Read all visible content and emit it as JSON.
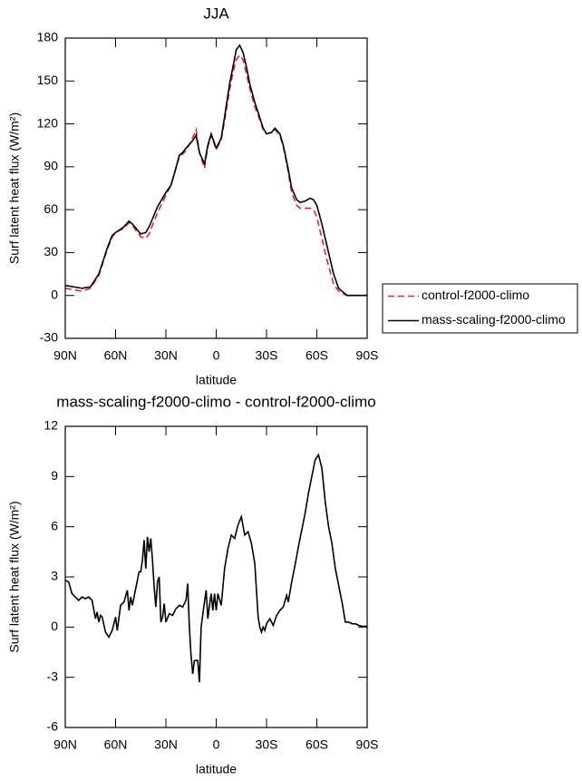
{
  "chart_data": [
    {
      "type": "line",
      "title": "JJA",
      "xlabel": "latitude",
      "ylabel": "Surf latent heat flux (W/m²)",
      "x": [
        90,
        85,
        80,
        75,
        70,
        65,
        62,
        60,
        55,
        52,
        50,
        45,
        42,
        40,
        35,
        30,
        27,
        25,
        22,
        20,
        18,
        15,
        13,
        12,
        10,
        7,
        5,
        3,
        0,
        -3,
        -5,
        -8,
        -10,
        -12,
        -14,
        -16,
        -18,
        -20,
        -23,
        -25,
        -28,
        -30,
        -33,
        -35,
        -38,
        -40,
        -43,
        -45,
        -48,
        -50,
        -53,
        -56,
        -58,
        -60,
        -63,
        -66,
        -70,
        -73,
        -76,
        -78,
        -80,
        -85,
        -90
      ],
      "series": [
        {
          "name": "control-f2000-climo",
          "color": "#e8202a",
          "dash": true,
          "values": [
            5,
            4,
            3,
            5,
            14,
            32,
            41,
            44,
            47,
            51,
            49,
            41,
            40,
            43,
            58,
            70,
            77,
            85,
            97,
            99,
            101,
            108,
            113,
            116,
            100,
            89,
            104,
            112,
            102,
            109,
            122,
            144,
            156,
            165,
            168,
            165,
            155,
            145,
            132,
            126,
            116,
            113,
            114,
            116,
            112,
            104,
            86,
            72,
            63,
            61,
            61,
            61,
            60,
            55,
            40,
            25,
            8,
            3,
            1,
            0,
            0,
            0,
            0
          ]
        },
        {
          "name": "mass-scaling-f2000-climo",
          "color": "#000000",
          "dash": false,
          "values": [
            7,
            6,
            5,
            6,
            15,
            33,
            42,
            44,
            48,
            52,
            50,
            43,
            44,
            48,
            62,
            72,
            77,
            85,
            98,
            100,
            103,
            107,
            110,
            112,
            100,
            92,
            105,
            113,
            103,
            110,
            125,
            148,
            160,
            172,
            175,
            170,
            160,
            148,
            135,
            128,
            117,
            113,
            114,
            117,
            113,
            105,
            88,
            75,
            67,
            65,
            66,
            68,
            67,
            63,
            50,
            35,
            15,
            5,
            2,
            0,
            0,
            0,
            0
          ]
        }
      ],
      "xlim": [
        90,
        -90
      ],
      "xticks": [
        {
          "value": 90,
          "label": "90N"
        },
        {
          "value": 60,
          "label": "60N"
        },
        {
          "value": 30,
          "label": "30N"
        },
        0,
        {
          "value": -30,
          "label": "30S"
        },
        {
          "value": -60,
          "label": "60S"
        },
        {
          "value": -90,
          "label": "90S"
        }
      ],
      "ylim": [
        -30,
        180
      ],
      "yticks": [
        -30,
        0,
        30,
        60,
        90,
        120,
        150,
        180
      ],
      "legend": "right"
    },
    {
      "type": "line",
      "title": "mass-scaling-f2000-climo - control-f2000-climo",
      "xlabel": "latitude",
      "ylabel": "Surf latent heat flux (W/m²)",
      "x": [
        90,
        88,
        86,
        84,
        82,
        80,
        78,
        76,
        74,
        72,
        71,
        70,
        69,
        68,
        66,
        64,
        62,
        60,
        59,
        57,
        55,
        53,
        52,
        51,
        50,
        48,
        46,
        45,
        44,
        43,
        42,
        41,
        40,
        39,
        38,
        37,
        36,
        35,
        34,
        33,
        32,
        31,
        30,
        28,
        26,
        24,
        22,
        20,
        18,
        17,
        16,
        15,
        14,
        13,
        11,
        10,
        9,
        7,
        6,
        5,
        4,
        3,
        2,
        1,
        0,
        -1,
        -3,
        -5,
        -7,
        -9,
        -11,
        -13,
        -15,
        -17,
        -19,
        -21,
        -23,
        -25,
        -26,
        -27,
        -28,
        -29,
        -30,
        -32,
        -34,
        -36,
        -38,
        -40,
        -42,
        -43,
        -45,
        -47,
        -49,
        -51,
        -53,
        -55,
        -57,
        -59,
        -61,
        -63,
        -65,
        -67,
        -69,
        -71,
        -73,
        -75,
        -77,
        -79,
        -81,
        -83,
        -85,
        -87,
        -90
      ],
      "values": [
        2.8,
        2.7,
        2,
        1.8,
        1.6,
        1.8,
        1.7,
        1.8,
        1.6,
        0.5,
        0.9,
        0.3,
        0.7,
        0.6,
        -0.3,
        -0.6,
        -0.2,
        0.6,
        -0.2,
        1.3,
        1.5,
        2.2,
        1,
        1.8,
        1.3,
        2.3,
        3.3,
        3.3,
        4,
        5.2,
        3.5,
        5.4,
        4.5,
        5.3,
        4,
        2.4,
        1.2,
        2.7,
        3,
        0.3,
        0.6,
        1.4,
        0.3,
        0.8,
        0.7,
        1.1,
        1.3,
        1.2,
        1.6,
        2.6,
        0,
        -1.7,
        -2.8,
        -2,
        -2,
        -3.3,
        0,
        1.5,
        2.2,
        0.5,
        1.3,
        2,
        1,
        2,
        1,
        2,
        1.3,
        3.5,
        4.7,
        5.5,
        5.3,
        6.1,
        6.6,
        5.5,
        5.7,
        5,
        3.8,
        0.6,
        0,
        -0.3,
        0,
        -0.2,
        0.2,
        0.5,
        0.1,
        0.7,
        1,
        1.2,
        1.9,
        1.5,
        2.7,
        3.7,
        4.8,
        5.8,
        6.8,
        8,
        9,
        10,
        10.3,
        9.5,
        7.5,
        6,
        5,
        3.5,
        2.5,
        1.5,
        0.3,
        0.3,
        0.2,
        0.2,
        0.1,
        0.05,
        0.05
      ],
      "color": "#000000",
      "xlim": [
        90,
        -90
      ],
      "xticks": [
        {
          "value": 90,
          "label": "90N"
        },
        {
          "value": 60,
          "label": "60N"
        },
        {
          "value": 30,
          "label": "30N"
        },
        0,
        {
          "value": -30,
          "label": "30S"
        },
        {
          "value": -60,
          "label": "60S"
        },
        {
          "value": -90,
          "label": "90S"
        }
      ],
      "ylim": [
        -6,
        12
      ],
      "yticks": [
        -6,
        -3,
        0,
        3,
        6,
        9,
        12
      ]
    }
  ]
}
